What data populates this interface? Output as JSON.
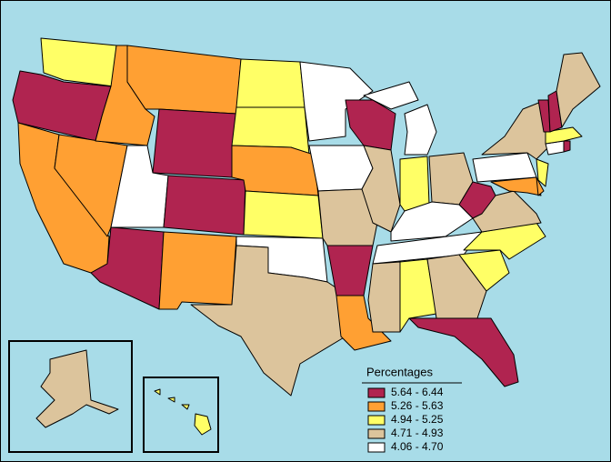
{
  "legend": {
    "title": "Percentages",
    "classes": [
      {
        "label": "5.64 - 6.44",
        "color": "#b02450"
      },
      {
        "label": "5.26 - 5.63",
        "color": "#ffa033"
      },
      {
        "label": "4.94 - 5.25",
        "color": "#ffff66"
      },
      {
        "label": "4.71 - 4.93",
        "color": "#dcc49c"
      },
      {
        "label": "4.06 - 4.70",
        "color": "#ffffff"
      }
    ]
  }
}
